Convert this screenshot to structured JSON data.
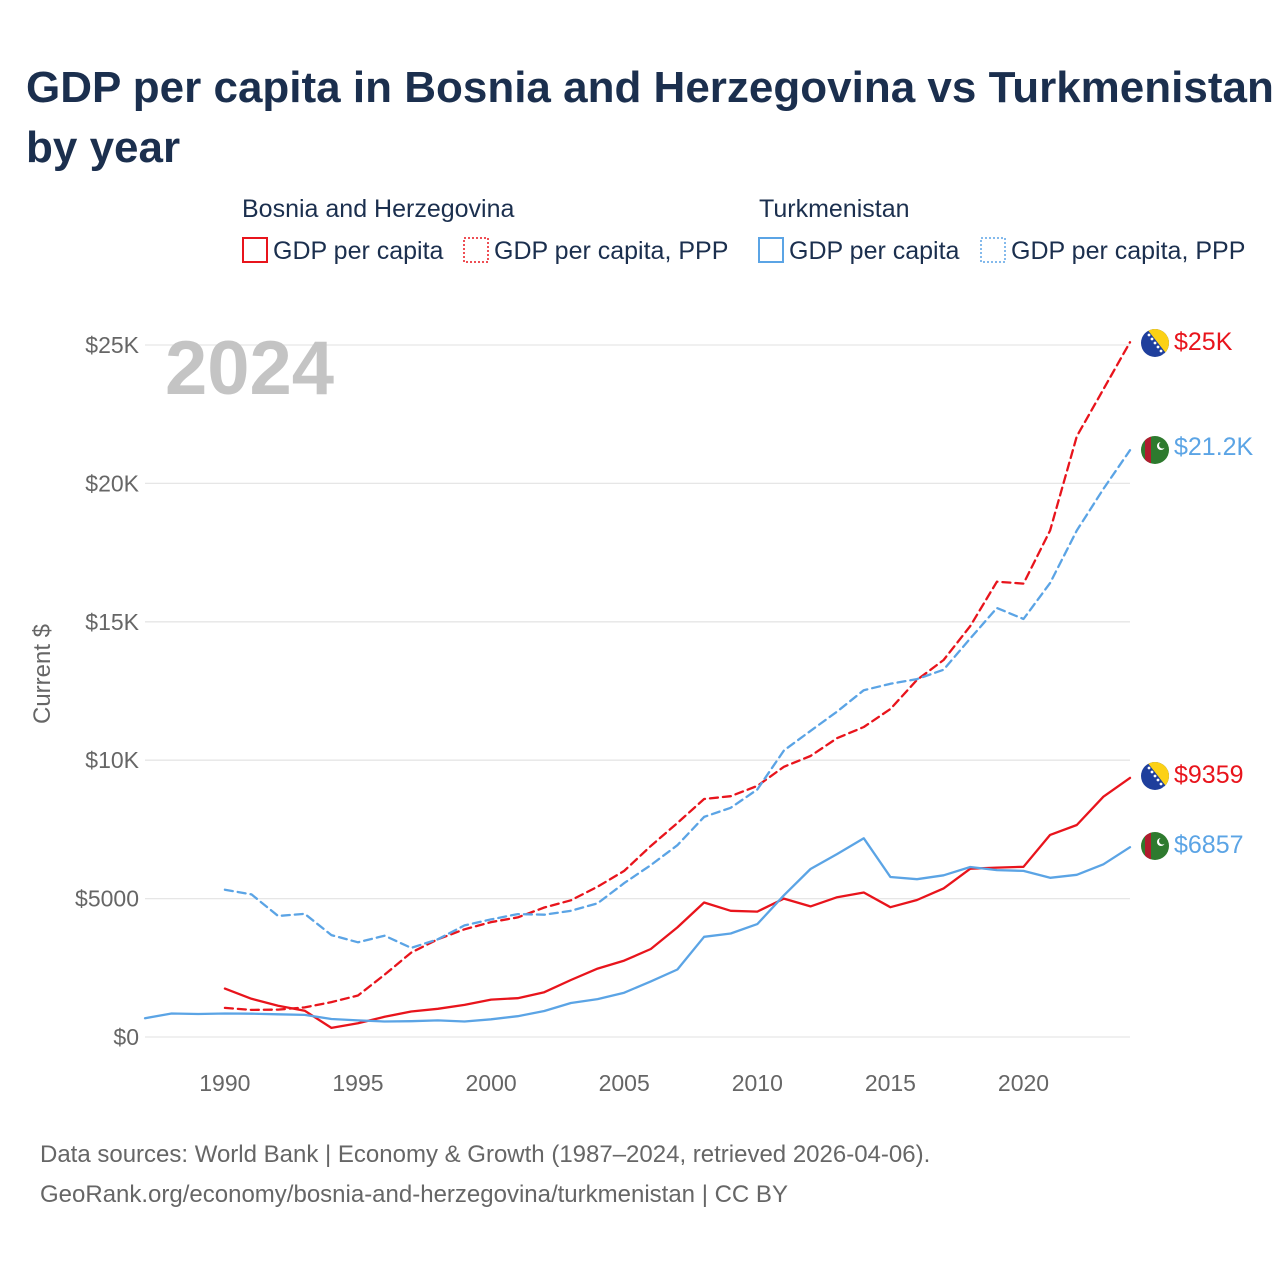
{
  "title_lines": [
    "GDP per capita in Bosnia and Herzegovina vs Turkmenistan",
    "by year"
  ],
  "year_label": "2024",
  "y_axis_label": "Current $",
  "legend": {
    "groups": [
      {
        "name": "Bosnia and Herzegovina",
        "color": "#e8141c",
        "items": [
          {
            "label": "GDP per capita",
            "style": "solid"
          },
          {
            "label": "GDP per capita, PPP",
            "style": "dashed"
          }
        ]
      },
      {
        "name": "Turkmenistan",
        "color": "#5ba4e5",
        "items": [
          {
            "label": "GDP per capita",
            "style": "solid"
          },
          {
            "label": "GDP per capita, PPP",
            "style": "dashed"
          }
        ]
      }
    ]
  },
  "source": {
    "line1": "Data sources: World Bank | Economy & Growth (1987–2024, retrieved 2026-04-06).",
    "line2": "GeoRank.org/economy/bosnia-and-herzegovina/turkmenistan | CC BY"
  },
  "chart_data": {
    "type": "line",
    "title": "GDP per capita in Bosnia and Herzegovina vs Turkmenistan by year",
    "xlabel": "",
    "ylabel": "Current $",
    "xlim": [
      1987,
      2024
    ],
    "ylim": [
      0,
      25000
    ],
    "x_ticks": [
      1990,
      1995,
      2000,
      2005,
      2010,
      2015,
      2020
    ],
    "x_tick_labels": [
      "1990",
      "1995",
      "2000",
      "2005",
      "2010",
      "2015",
      "2020"
    ],
    "y_ticks": [
      0,
      5000,
      10000,
      15000,
      20000,
      25000
    ],
    "y_tick_labels": [
      "$0",
      "$5000",
      "$10K",
      "$15K",
      "$20K",
      "$25K"
    ],
    "grid": true,
    "series": [
      {
        "name": "Bosnia and Herzegovina — GDP per capita",
        "country": "Bosnia and Herzegovina",
        "color": "#e8141c",
        "style": "solid",
        "end_label": "$9359",
        "start_year": 1990,
        "values": [
          1750,
          1380,
          1130,
          950,
          330,
          500,
          730,
          920,
          1020,
          1160,
          1350,
          1400,
          1620,
          2060,
          2470,
          2760,
          3180,
          3960,
          4860,
          4560,
          4530,
          5000,
          4720,
          5050,
          5220,
          4690,
          4950,
          5370,
          6080,
          6120,
          6150,
          7300,
          7660,
          8680,
          9359
        ]
      },
      {
        "name": "Bosnia and Herzegovina — GDP per capita, PPP",
        "country": "Bosnia and Herzegovina",
        "color": "#e8141c",
        "style": "dashed",
        "end_label": "$25K",
        "start_year": 1990,
        "values": [
          1050,
          980,
          990,
          1070,
          1260,
          1500,
          2250,
          3050,
          3530,
          3890,
          4150,
          4320,
          4680,
          4940,
          5430,
          6000,
          6900,
          7730,
          8600,
          8700,
          9070,
          9760,
          10150,
          10800,
          11200,
          11850,
          12900,
          13620,
          14850,
          16450,
          16380,
          18300,
          21700,
          23400,
          25100
        ]
      },
      {
        "name": "Turkmenistan — GDP per capita",
        "country": "Turkmenistan",
        "color": "#5ba4e5",
        "style": "solid",
        "end_label": "$6857",
        "start_year": 1987,
        "values": [
          680,
          850,
          830,
          850,
          840,
          820,
          800,
          650,
          600,
          560,
          570,
          600,
          560,
          640,
          750,
          940,
          1230,
          1370,
          1600,
          2010,
          2440,
          3620,
          3740,
          4080,
          5120,
          6070,
          6610,
          7180,
          5780,
          5700,
          5840,
          6140,
          6030,
          6000,
          5750,
          5860,
          6240,
          6857
        ]
      },
      {
        "name": "Turkmenistan — GDP per capita, PPP",
        "country": "Turkmenistan",
        "color": "#5ba4e5",
        "style": "dashed",
        "end_label": "$21.2K",
        "start_year": 1990,
        "values": [
          5320,
          5150,
          4370,
          4450,
          3680,
          3420,
          3660,
          3220,
          3530,
          4030,
          4250,
          4440,
          4420,
          4560,
          4830,
          5560,
          6210,
          6930,
          7950,
          8280,
          8940,
          10350,
          11060,
          11760,
          12530,
          12760,
          12930,
          13270,
          14400,
          15500,
          15100,
          16400,
          18300,
          19800,
          21200
        ]
      }
    ]
  }
}
